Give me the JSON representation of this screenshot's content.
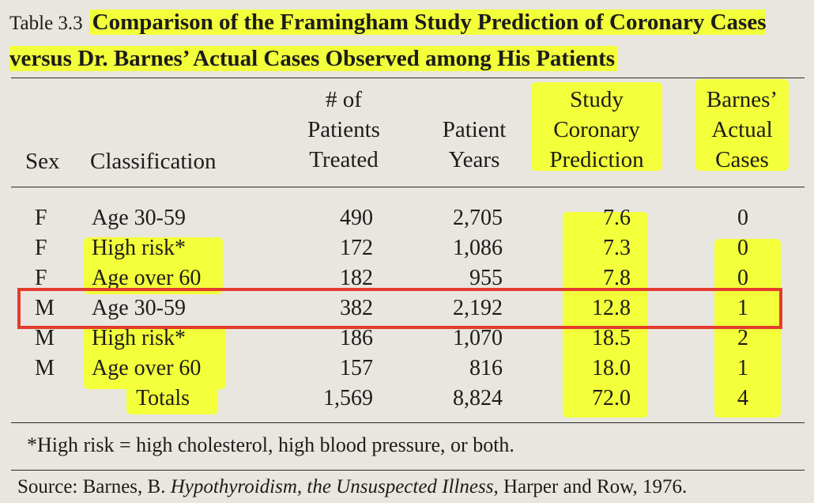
{
  "table": {
    "label": "Table 3.3",
    "title": "Comparison of the Framingham Study Prediction of Coronary Cases versus Dr. Barnes’ Actual Cases Observed among His Patients",
    "headers": {
      "sex": "Sex",
      "classification": "Classification",
      "patients_1": "# of",
      "patients_2": "Patients",
      "patients_3": "Treated",
      "years_1": "Patient",
      "years_2": "Years",
      "pred_1": "Study",
      "pred_2": "Coronary",
      "pred_3": "Prediction",
      "actual_1": "Barnes’",
      "actual_2": "Actual",
      "actual_3": "Cases"
    },
    "rows": [
      {
        "sex": "F",
        "classification": "Age 30-59",
        "patients": "490",
        "years": "2,705",
        "prediction": "7.6",
        "actual": "0"
      },
      {
        "sex": "F",
        "classification": "High risk*",
        "patients": "172",
        "years": "1,086",
        "prediction": "7.3",
        "actual": "0"
      },
      {
        "sex": "F",
        "classification": "Age over 60",
        "patients": "182",
        "years": "955",
        "prediction": "7.8",
        "actual": "0"
      },
      {
        "sex": "M",
        "classification": "Age 30-59",
        "patients": "382",
        "years": "2,192",
        "prediction": "12.8",
        "actual": "1"
      },
      {
        "sex": "M",
        "classification": "High risk*",
        "patients": "186",
        "years": "1,070",
        "prediction": "18.5",
        "actual": "2"
      },
      {
        "sex": "M",
        "classification": "Age over 60",
        "patients": "157",
        "years": "816",
        "prediction": "18.0",
        "actual": "1"
      }
    ],
    "totals": {
      "label": "Totals",
      "patients": "1,569",
      "years": "8,824",
      "prediction": "72.0",
      "actual": "4"
    },
    "footnote": "*High risk = high cholesterol, high blood pressure, or both.",
    "source_prefix": "Source: Barnes, B. ",
    "source_book": "Hypothyroidism, the Unsuspected Illness",
    "source_suffix": ", Harper and Row, 1976."
  },
  "colors": {
    "highlight": "#f2ff3a",
    "box": "#e33b2e"
  }
}
